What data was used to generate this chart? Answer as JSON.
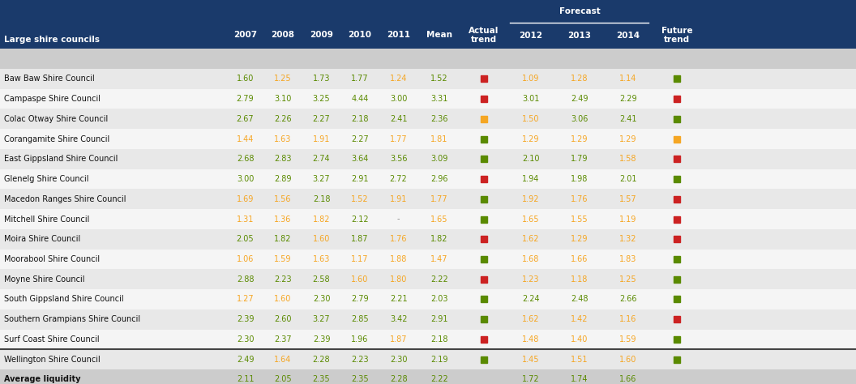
{
  "header_bg": "#1a3a6b",
  "header_text": "#ffffff",
  "row_bg_odd": "#e8e8e8",
  "row_bg_even": "#f5f5f5",
  "avg_bg": "#cccccc",
  "orange_color": "#f5a623",
  "green_color": "#5a8a00",
  "red_color": "#cc2222",
  "rows": [
    {
      "name": "Baw Baw Shire Council",
      "2007": "1.60",
      "2008": "1.25",
      "2009": "1.73",
      "2010": "1.77",
      "2011": "1.24",
      "mean": "1.52",
      "actual_trend": "red",
      "y2012": "1.09",
      "y2013": "1.28",
      "y2014": "1.14",
      "future_trend": "green",
      "c07": "green",
      "c08": "orange",
      "c09": "green",
      "c10": "green",
      "c11": "orange",
      "cm": "green",
      "c12": "orange",
      "c13": "orange",
      "c14": "orange"
    },
    {
      "name": "Campaspe Shire Council",
      "2007": "2.79",
      "2008": "3.10",
      "2009": "3.25",
      "2010": "4.44",
      "2011": "3.00",
      "mean": "3.31",
      "actual_trend": "red",
      "y2012": "3.01",
      "y2013": "2.49",
      "y2014": "2.29",
      "future_trend": "red",
      "c07": "green",
      "c08": "green",
      "c09": "green",
      "c10": "green",
      "c11": "green",
      "cm": "green",
      "c12": "green",
      "c13": "green",
      "c14": "green"
    },
    {
      "name": "Colac Otway Shire Council",
      "2007": "2.67",
      "2008": "2.26",
      "2009": "2.27",
      "2010": "2.18",
      "2011": "2.41",
      "mean": "2.36",
      "actual_trend": "orange",
      "y2012": "1.50",
      "y2013": "3.06",
      "y2014": "2.41",
      "future_trend": "green",
      "c07": "green",
      "c08": "green",
      "c09": "green",
      "c10": "green",
      "c11": "green",
      "cm": "green",
      "c12": "orange",
      "c13": "green",
      "c14": "green"
    },
    {
      "name": "Corangamite Shire Council",
      "2007": "1.44",
      "2008": "1.63",
      "2009": "1.91",
      "2010": "2.27",
      "2011": "1.77",
      "mean": "1.81",
      "actual_trend": "green",
      "y2012": "1.29",
      "y2013": "1.29",
      "y2014": "1.29",
      "future_trend": "orange",
      "c07": "orange",
      "c08": "orange",
      "c09": "orange",
      "c10": "green",
      "c11": "orange",
      "cm": "orange",
      "c12": "orange",
      "c13": "orange",
      "c14": "orange"
    },
    {
      "name": "East Gippsland Shire Council",
      "2007": "2.68",
      "2008": "2.83",
      "2009": "2.74",
      "2010": "3.64",
      "2011": "3.56",
      "mean": "3.09",
      "actual_trend": "green",
      "y2012": "2.10",
      "y2013": "1.79",
      "y2014": "1.58",
      "future_trend": "red",
      "c07": "green",
      "c08": "green",
      "c09": "green",
      "c10": "green",
      "c11": "green",
      "cm": "green",
      "c12": "green",
      "c13": "green",
      "c14": "orange"
    },
    {
      "name": "Glenelg Shire Council",
      "2007": "3.00",
      "2008": "2.89",
      "2009": "3.27",
      "2010": "2.91",
      "2011": "2.72",
      "mean": "2.96",
      "actual_trend": "red",
      "y2012": "1.94",
      "y2013": "1.98",
      "y2014": "2.01",
      "future_trend": "green",
      "c07": "green",
      "c08": "green",
      "c09": "green",
      "c10": "green",
      "c11": "green",
      "cm": "green",
      "c12": "green",
      "c13": "green",
      "c14": "green"
    },
    {
      "name": "Macedon Ranges Shire Council",
      "2007": "1.69",
      "2008": "1.56",
      "2009": "2.18",
      "2010": "1.52",
      "2011": "1.91",
      "mean": "1.77",
      "actual_trend": "green",
      "y2012": "1.92",
      "y2013": "1.76",
      "y2014": "1.57",
      "future_trend": "red",
      "c07": "orange",
      "c08": "orange",
      "c09": "green",
      "c10": "orange",
      "c11": "orange",
      "cm": "orange",
      "c12": "orange",
      "c13": "orange",
      "c14": "orange"
    },
    {
      "name": "Mitchell Shire Council",
      "2007": "1.31",
      "2008": "1.36",
      "2009": "1.82",
      "2010": "2.12",
      "2011": "-",
      "mean": "1.65",
      "actual_trend": "green",
      "y2012": "1.65",
      "y2013": "1.55",
      "y2014": "1.19",
      "future_trend": "red",
      "c07": "orange",
      "c08": "orange",
      "c09": "orange",
      "c10": "green",
      "c11": "none",
      "cm": "orange",
      "c12": "orange",
      "c13": "orange",
      "c14": "orange"
    },
    {
      "name": "Moira Shire Council",
      "2007": "2.05",
      "2008": "1.82",
      "2009": "1.60",
      "2010": "1.87",
      "2011": "1.76",
      "mean": "1.82",
      "actual_trend": "red",
      "y2012": "1.62",
      "y2013": "1.29",
      "y2014": "1.32",
      "future_trend": "red",
      "c07": "green",
      "c08": "green",
      "c09": "orange",
      "c10": "green",
      "c11": "orange",
      "cm": "green",
      "c12": "orange",
      "c13": "orange",
      "c14": "orange"
    },
    {
      "name": "Moorabool Shire Council",
      "2007": "1.06",
      "2008": "1.59",
      "2009": "1.63",
      "2010": "1.17",
      "2011": "1.88",
      "mean": "1.47",
      "actual_trend": "green",
      "y2012": "1.68",
      "y2013": "1.66",
      "y2014": "1.83",
      "future_trend": "green",
      "c07": "orange",
      "c08": "orange",
      "c09": "orange",
      "c10": "orange",
      "c11": "orange",
      "cm": "orange",
      "c12": "orange",
      "c13": "orange",
      "c14": "orange"
    },
    {
      "name": "Moyne Shire Council",
      "2007": "2.88",
      "2008": "2.23",
      "2009": "2.58",
      "2010": "1.60",
      "2011": "1.80",
      "mean": "2.22",
      "actual_trend": "red",
      "y2012": "1.23",
      "y2013": "1.18",
      "y2014": "1.25",
      "future_trend": "green",
      "c07": "green",
      "c08": "green",
      "c09": "green",
      "c10": "orange",
      "c11": "orange",
      "cm": "green",
      "c12": "orange",
      "c13": "orange",
      "c14": "orange"
    },
    {
      "name": "South Gippsland Shire Council",
      "2007": "1.27",
      "2008": "1.60",
      "2009": "2.30",
      "2010": "2.79",
      "2011": "2.21",
      "mean": "2.03",
      "actual_trend": "green",
      "y2012": "2.24",
      "y2013": "2.48",
      "y2014": "2.66",
      "future_trend": "green",
      "c07": "orange",
      "c08": "orange",
      "c09": "green",
      "c10": "green",
      "c11": "green",
      "cm": "green",
      "c12": "green",
      "c13": "green",
      "c14": "green"
    },
    {
      "name": "Southern Grampians Shire Council",
      "2007": "2.39",
      "2008": "2.60",
      "2009": "3.27",
      "2010": "2.85",
      "2011": "3.42",
      "mean": "2.91",
      "actual_trend": "green",
      "y2012": "1.62",
      "y2013": "1.42",
      "y2014": "1.16",
      "future_trend": "red",
      "c07": "green",
      "c08": "green",
      "c09": "green",
      "c10": "green",
      "c11": "green",
      "cm": "green",
      "c12": "orange",
      "c13": "orange",
      "c14": "orange"
    },
    {
      "name": "Surf Coast Shire Council",
      "2007": "2.30",
      "2008": "2.37",
      "2009": "2.39",
      "2010": "1.96",
      "2011": "1.87",
      "mean": "2.18",
      "actual_trend": "red",
      "y2012": "1.48",
      "y2013": "1.40",
      "y2014": "1.59",
      "future_trend": "green",
      "c07": "green",
      "c08": "green",
      "c09": "green",
      "c10": "green",
      "c11": "orange",
      "cm": "green",
      "c12": "orange",
      "c13": "orange",
      "c14": "orange"
    },
    {
      "name": "Wellington Shire Council",
      "2007": "2.49",
      "2008": "1.64",
      "2009": "2.28",
      "2010": "2.23",
      "2011": "2.30",
      "mean": "2.19",
      "actual_trend": "green",
      "y2012": "1.45",
      "y2013": "1.51",
      "y2014": "1.60",
      "future_trend": "green",
      "c07": "green",
      "c08": "orange",
      "c09": "green",
      "c10": "green",
      "c11": "green",
      "cm": "green",
      "c12": "orange",
      "c13": "orange",
      "c14": "orange"
    }
  ],
  "avg_row": {
    "name": "Average liquidity",
    "2007": "2.11",
    "2008": "2.05",
    "2009": "2.35",
    "2010": "2.35",
    "2011": "2.28",
    "mean": "2.22",
    "y2012": "1.72",
    "y2013": "1.74",
    "y2014": "1.66",
    "c07": "green",
    "c08": "green",
    "c09": "green",
    "c10": "green",
    "c11": "green",
    "cm": "green",
    "c12": "green",
    "c13": "green",
    "c14": "green"
  }
}
